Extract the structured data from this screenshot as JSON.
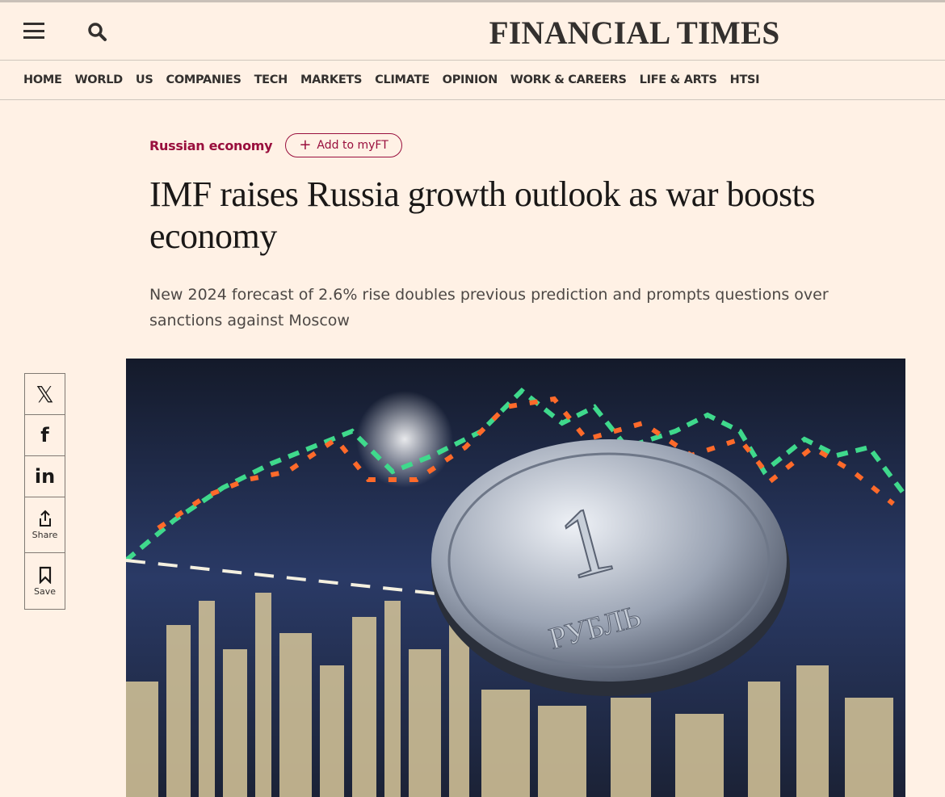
{
  "header": {
    "logo": "FINANCIAL TIMES",
    "menu_icon": "hamburger-icon",
    "search_icon": "search-icon"
  },
  "nav": [
    "HOME",
    "WORLD",
    "US",
    "COMPANIES",
    "TECH",
    "MARKETS",
    "CLIMATE",
    "OPINION",
    "WORK & CAREERS",
    "LIFE & ARTS",
    "HTSI"
  ],
  "article": {
    "topic": "Russian economy",
    "add_myft": "Add to myFT",
    "title": "IMF raises Russia growth outlook as war boosts economy",
    "standfirst": "New 2024 forecast of 2.6% rise doubles previous prediction and prompts questions over sanctions against Moscow",
    "image_coin_text": "1 РУБЛЬ"
  },
  "share": {
    "share_label": "Share",
    "save_label": "Save"
  },
  "colors": {
    "background": "#fff1e5",
    "accent": "#990f3d"
  }
}
